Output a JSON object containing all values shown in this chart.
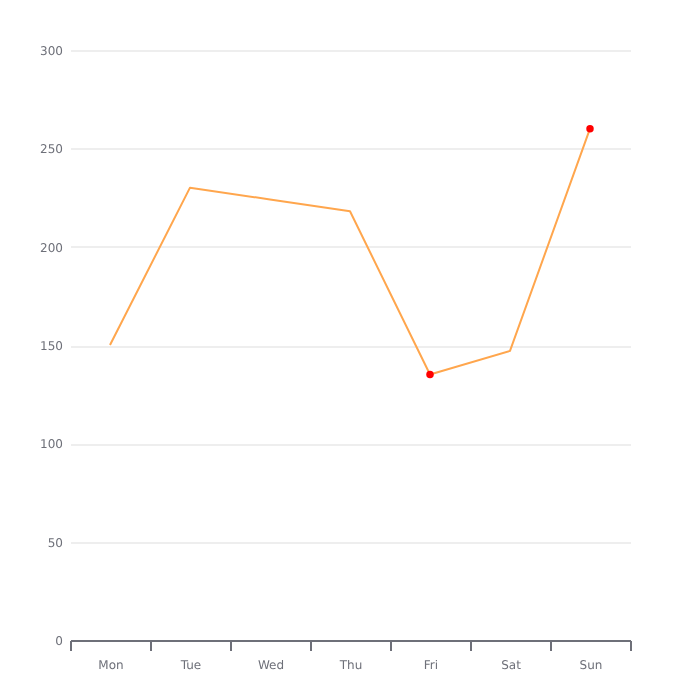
{
  "chart_data": {
    "type": "line",
    "categories": [
      "Mon",
      "Tue",
      "Wed",
      "Thu",
      "Fri",
      "Sat",
      "Sun"
    ],
    "series": [
      {
        "color": "#ffa64d",
        "values": [
          150,
          230,
          224,
          218,
          135,
          147,
          260
        ],
        "marker": "none"
      },
      {
        "type": "scatter",
        "color": "#ff0000",
        "x": [
          "Fri",
          "Sun"
        ],
        "values": [
          135,
          260
        ],
        "marker": "circle"
      }
    ],
    "ylim": [
      0,
      300
    ],
    "yticks": [
      0,
      50,
      100,
      150,
      200,
      250,
      300
    ],
    "grid": "y"
  }
}
